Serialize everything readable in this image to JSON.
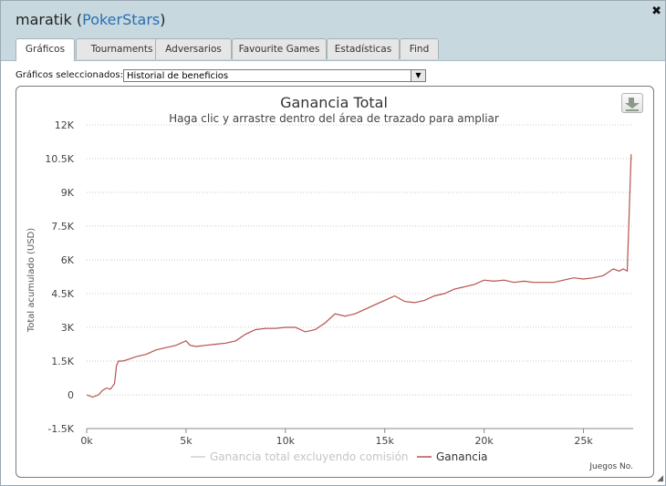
{
  "window": {
    "player_name": "maratik",
    "site_name": "PokerStars",
    "paren_open": "(",
    "paren_close": ")",
    "close_symbol": "✖"
  },
  "tabs": [
    {
      "label": "Gráficos",
      "active": true
    },
    {
      "label": "Tournaments",
      "active": false
    },
    {
      "label": "Adversarios",
      "active": false
    },
    {
      "label": "Favourite Games",
      "active": false
    },
    {
      "label": "Estadísticas",
      "active": false
    },
    {
      "label": "Find",
      "active": false
    }
  ],
  "chart_select": {
    "label": "Gráficos seleccionados:",
    "value": "Historial de beneficios"
  },
  "chart_data": {
    "type": "line",
    "title": "Ganancia Total",
    "subtitle": "Haga clic y arrastre dentro del área de trazado para ampliar",
    "ylabel": "Total acumulado (USD)",
    "xlabel": "Juegos No.",
    "xlim": [
      0,
      27500
    ],
    "ylim": [
      -1500,
      12000
    ],
    "x_ticks": [
      0,
      5000,
      10000,
      15000,
      20000,
      25000
    ],
    "x_tick_labels": [
      "0k",
      "5k",
      "10k",
      "15k",
      "20k",
      "25k"
    ],
    "y_ticks": [
      -1500,
      0,
      1500,
      3000,
      4500,
      6000,
      7500,
      9000,
      10500,
      12000
    ],
    "y_tick_labels": [
      "-1.5K",
      "0",
      "1.5K",
      "3K",
      "4.5K",
      "6K",
      "7.5K",
      "9K",
      "10.5K",
      "12K"
    ],
    "grid": true,
    "legend_position": "bottom-center",
    "series": [
      {
        "name": "Ganancia total excluyendo comisión",
        "color": "#cfcfcf",
        "values": []
      },
      {
        "name": "Ganancia",
        "color": "#b5524c",
        "x": [
          0,
          300,
          600,
          800,
          1000,
          1200,
          1400,
          1500,
          1600,
          1800,
          2000,
          2500,
          3000,
          3500,
          4000,
          4500,
          5000,
          5200,
          5500,
          6000,
          6500,
          7000,
          7500,
          8000,
          8500,
          9000,
          9500,
          10000,
          10500,
          11000,
          11500,
          12000,
          12500,
          13000,
          13500,
          14000,
          14500,
          15000,
          15500,
          16000,
          16500,
          17000,
          17500,
          18000,
          18500,
          19000,
          19500,
          20000,
          20500,
          21000,
          21500,
          22000,
          22500,
          23000,
          23500,
          24000,
          24500,
          25000,
          25500,
          26000,
          26500,
          26800,
          27000,
          27200,
          27300,
          27400
        ],
        "values": [
          0,
          -100,
          0,
          200,
          300,
          250,
          500,
          1300,
          1500,
          1500,
          1550,
          1700,
          1800,
          2000,
          2100,
          2200,
          2400,
          2200,
          2150,
          2200,
          2250,
          2300,
          2400,
          2700,
          2900,
          2950,
          2950,
          3000,
          3000,
          2800,
          2900,
          3200,
          3600,
          3500,
          3600,
          3800,
          4000,
          4200,
          4400,
          4150,
          4100,
          4200,
          4400,
          4500,
          4700,
          4800,
          4900,
          5100,
          5050,
          5100,
          5000,
          5050,
          5000,
          5000,
          5000,
          5100,
          5200,
          5150,
          5200,
          5300,
          5600,
          5500,
          5600,
          5500,
          8000,
          10700
        ]
      }
    ]
  }
}
